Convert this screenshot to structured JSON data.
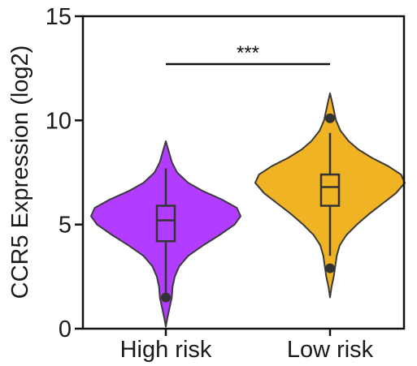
{
  "chart_data": {
    "type": "violin",
    "title": "",
    "xlabel": "",
    "ylabel": "CCR5 Expression (log2)",
    "ylim": [
      0,
      15
    ],
    "yticks": [
      0,
      5,
      10,
      15
    ],
    "categories": [
      "High risk",
      "Low risk"
    ],
    "series": [
      {
        "category": "High risk",
        "color": "#b23cff",
        "min": 0.1,
        "max": 9.0,
        "box": {
          "q1": 4.2,
          "median": 5.2,
          "q3": 5.9,
          "whisker_low": 1.6,
          "whisker_high": 7.7
        },
        "outliers": [
          1.5
        ],
        "density": [
          [
            0.1,
            0.0
          ],
          [
            0.5,
            0.02
          ],
          [
            1.0,
            0.05
          ],
          [
            1.5,
            0.08
          ],
          [
            2.0,
            0.09
          ],
          [
            2.5,
            0.12
          ],
          [
            3.0,
            0.18
          ],
          [
            3.5,
            0.3
          ],
          [
            4.0,
            0.5
          ],
          [
            4.5,
            0.72
          ],
          [
            5.0,
            0.92
          ],
          [
            5.4,
            1.0
          ],
          [
            5.8,
            0.95
          ],
          [
            6.2,
            0.75
          ],
          [
            6.6,
            0.5
          ],
          [
            7.0,
            0.3
          ],
          [
            7.5,
            0.15
          ],
          [
            8.0,
            0.08
          ],
          [
            8.5,
            0.04
          ],
          [
            9.0,
            0.0
          ]
        ]
      },
      {
        "category": "Low risk",
        "color": "#f0b324",
        "min": 1.5,
        "max": 11.3,
        "box": {
          "q1": 5.9,
          "median": 6.8,
          "q3": 7.4,
          "whisker_low": 3.5,
          "whisker_high": 9.4
        },
        "outliers": [
          2.9,
          10.1
        ],
        "density": [
          [
            1.5,
            0.0
          ],
          [
            2.0,
            0.02
          ],
          [
            2.5,
            0.05
          ],
          [
            3.0,
            0.07
          ],
          [
            3.5,
            0.09
          ],
          [
            4.0,
            0.13
          ],
          [
            4.5,
            0.22
          ],
          [
            5.0,
            0.36
          ],
          [
            5.5,
            0.52
          ],
          [
            6.0,
            0.7
          ],
          [
            6.5,
            0.88
          ],
          [
            7.0,
            1.0
          ],
          [
            7.4,
            0.95
          ],
          [
            7.8,
            0.78
          ],
          [
            8.2,
            0.56
          ],
          [
            8.6,
            0.38
          ],
          [
            9.0,
            0.25
          ],
          [
            9.5,
            0.14
          ],
          [
            10.0,
            0.08
          ],
          [
            10.5,
            0.05
          ],
          [
            11.0,
            0.02
          ],
          [
            11.3,
            0.0
          ]
        ]
      }
    ],
    "significance": {
      "label": "***",
      "from": "High risk",
      "to": "Low risk",
      "y": 12.7
    }
  }
}
